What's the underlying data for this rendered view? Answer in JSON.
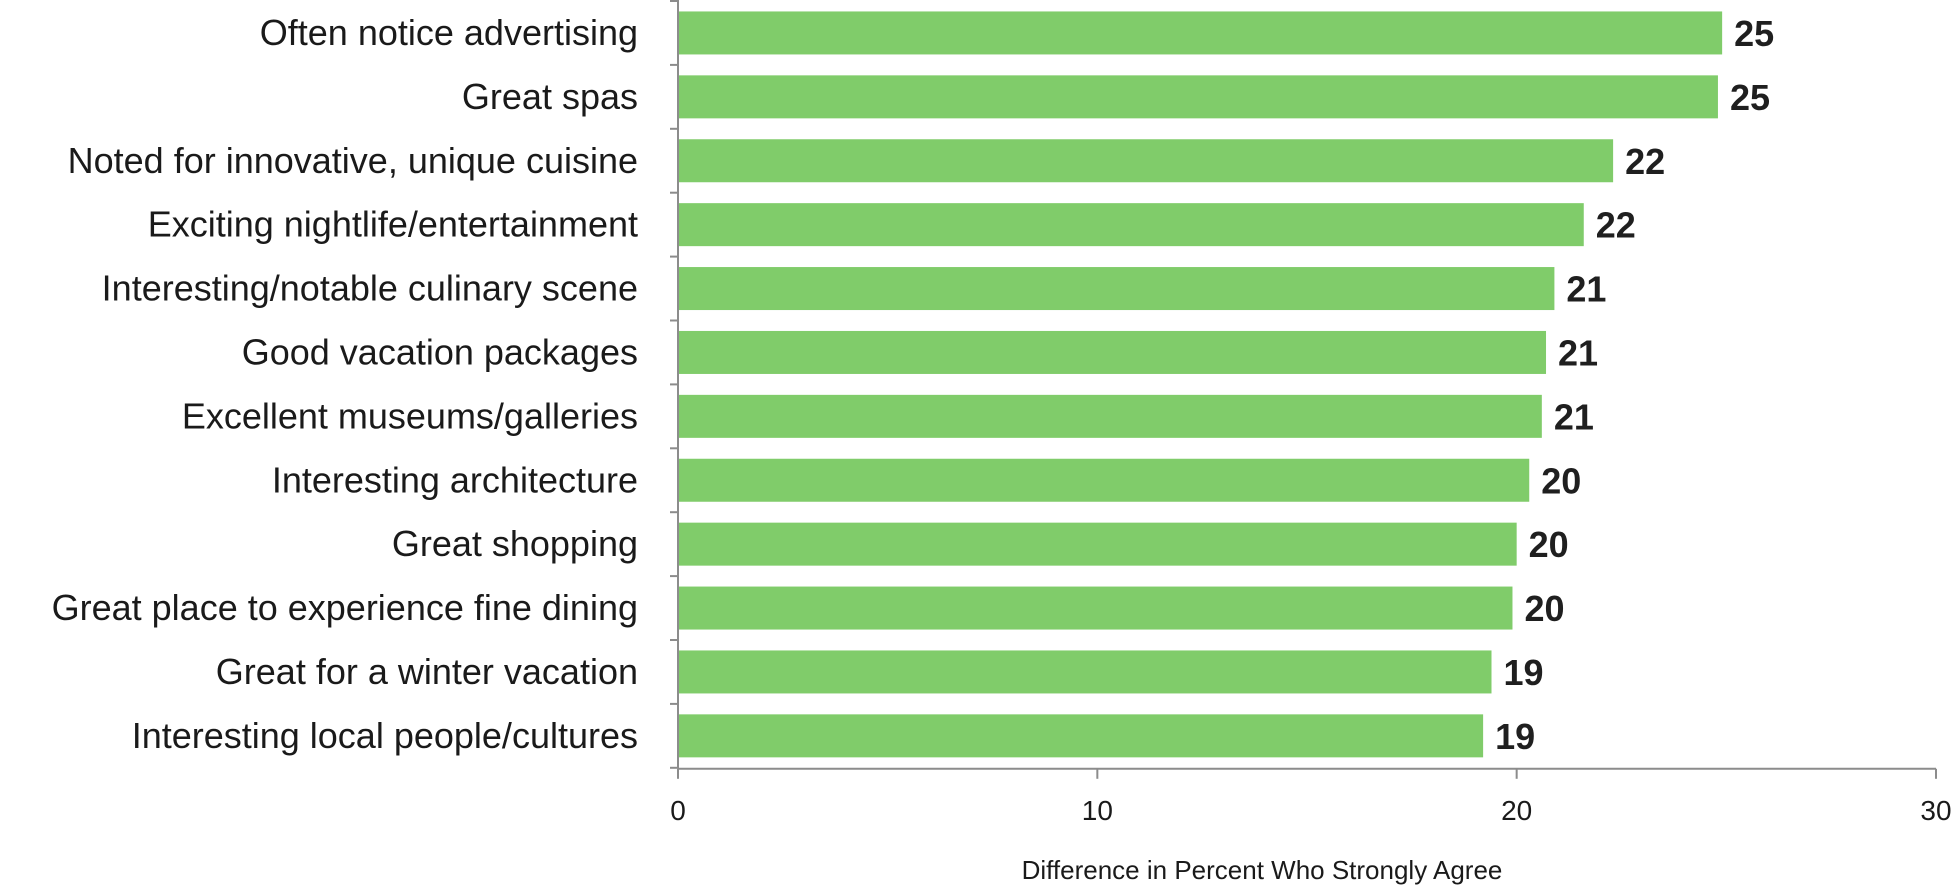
{
  "chart_data": {
    "type": "bar",
    "orientation": "horizontal",
    "categories": [
      "Often notice advertising",
      "Great spas",
      "Noted for innovative, unique cuisine",
      "Exciting nightlife/entertainment",
      "Interesting/notable culinary scene",
      "Good vacation packages",
      "Excellent museums/galleries",
      "Interesting architecture",
      "Great shopping",
      "Great place to experience fine dining",
      "Great for a winter vacation",
      "Interesting local people/cultures"
    ],
    "values": [
      25,
      25,
      22,
      22,
      21,
      21,
      21,
      20,
      20,
      20,
      19,
      19
    ],
    "value_labels": [
      "25",
      "25",
      "22",
      "22",
      "21",
      "21",
      "21",
      "20",
      "20",
      "20",
      "19",
      "19"
    ],
    "bar_lengths": [
      24.9,
      24.8,
      22.3,
      21.6,
      20.9,
      20.7,
      20.6,
      20.3,
      20.0,
      19.9,
      19.4,
      19.2
    ],
    "xlabel": "Difference in Percent Who Strongly Agree",
    "xlim": [
      0,
      30
    ],
    "xticks": [
      "0",
      "10",
      "20",
      "30"
    ],
    "grid": false,
    "bar_color": "#80cc6a",
    "legend": "none"
  }
}
